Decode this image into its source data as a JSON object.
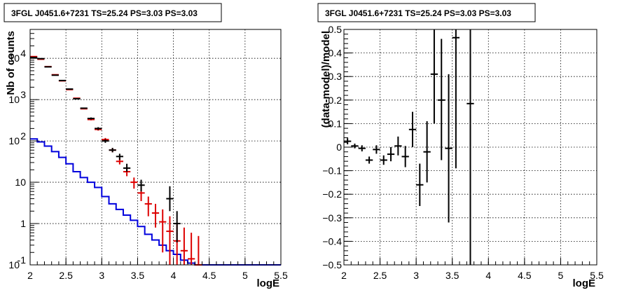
{
  "chart_data": [
    {
      "type": "scatter",
      "title": "3FGL J0451.6+7231 TS=25.24 PS=3.03 PS=3.03",
      "xlabel": "logE",
      "ylabel": "Nb of counts",
      "xlim": [
        2,
        5.5
      ],
      "ylim": [
        0.1,
        50000
      ],
      "yscale": "log",
      "grid": true,
      "x_ticks": [
        "2",
        "2.5",
        "3",
        "3.5",
        "4",
        "4.5",
        "5",
        "5.5"
      ],
      "y_ticks": [
        {
          "value": 0.1,
          "base": "10",
          "exp": "-1"
        },
        {
          "value": 1,
          "base": "1",
          "exp": ""
        },
        {
          "value": 10,
          "base": "10",
          "exp": ""
        },
        {
          "value": 100,
          "base": "10",
          "exp": "2"
        },
        {
          "value": 1000,
          "base": "10",
          "exp": "3"
        },
        {
          "value": 10000,
          "base": "10",
          "exp": "4"
        }
      ],
      "colors": {
        "data": "#000000",
        "model": "#dd0000",
        "background": "#0000dd"
      },
      "series": [
        {
          "kind": "data",
          "points": [
            {
              "x": 2.05,
              "y": 10500,
              "lo": 10500,
              "hi": 10500
            },
            {
              "x": 2.15,
              "y": 9800,
              "lo": 9800,
              "hi": 9800
            },
            {
              "x": 2.25,
              "y": 6200,
              "lo": 6200,
              "hi": 6200
            },
            {
              "x": 2.35,
              "y": 3900,
              "lo": 3900,
              "hi": 3900
            },
            {
              "x": 2.45,
              "y": 2900,
              "lo": 2900,
              "hi": 2900
            },
            {
              "x": 2.55,
              "y": 1800,
              "lo": 1800,
              "hi": 1800
            },
            {
              "x": 2.65,
              "y": 1050,
              "lo": 1050,
              "hi": 1050
            },
            {
              "x": 2.75,
              "y": 620,
              "lo": 620,
              "hi": 620
            },
            {
              "x": 2.85,
              "y": 350,
              "lo": 330,
              "hi": 370
            },
            {
              "x": 2.95,
              "y": 200,
              "lo": 185,
              "hi": 215
            },
            {
              "x": 3.05,
              "y": 100,
              "lo": 90,
              "hi": 110
            },
            {
              "x": 3.15,
              "y": 60,
              "lo": 53,
              "hi": 68
            },
            {
              "x": 3.25,
              "y": 42,
              "lo": 35,
              "hi": 49
            },
            {
              "x": 3.35,
              "y": 22,
              "lo": 18,
              "hi": 28
            },
            {
              "x": 3.55,
              "y": 8.5,
              "lo": 6,
              "hi": 11.5
            },
            {
              "x": 3.95,
              "y": 4,
              "lo": 2,
              "hi": 8
            },
            {
              "x": 4.05,
              "y": 1,
              "lo": 0.35,
              "hi": 2
            }
          ]
        },
        {
          "kind": "model",
          "points": [
            {
              "x": 2.05,
              "y": 11000,
              "lo": 11000,
              "hi": 11000
            },
            {
              "x": 2.15,
              "y": 9500,
              "lo": 9500,
              "hi": 9500
            },
            {
              "x": 2.25,
              "y": 6300,
              "lo": 6300,
              "hi": 6300
            },
            {
              "x": 2.35,
              "y": 4000,
              "lo": 4000,
              "hi": 4000
            },
            {
              "x": 2.45,
              "y": 2850,
              "lo": 2850,
              "hi": 2850
            },
            {
              "x": 2.55,
              "y": 1750,
              "lo": 1750,
              "hi": 1750
            },
            {
              "x": 2.65,
              "y": 1080,
              "lo": 1080,
              "hi": 1080
            },
            {
              "x": 2.75,
              "y": 600,
              "lo": 600,
              "hi": 600
            },
            {
              "x": 2.85,
              "y": 330,
              "lo": 315,
              "hi": 345
            },
            {
              "x": 2.95,
              "y": 190,
              "lo": 178,
              "hi": 202
            },
            {
              "x": 3.05,
              "y": 108,
              "lo": 98,
              "hi": 118
            },
            {
              "x": 3.15,
              "y": 60,
              "lo": 53,
              "hi": 68
            },
            {
              "x": 3.25,
              "y": 32,
              "lo": 27,
              "hi": 38
            },
            {
              "x": 3.35,
              "y": 18,
              "lo": 14,
              "hi": 22
            },
            {
              "x": 3.45,
              "y": 10,
              "lo": 7,
              "hi": 13
            },
            {
              "x": 3.55,
              "y": 5.5,
              "lo": 3.5,
              "hi": 7.5
            },
            {
              "x": 3.65,
              "y": 3,
              "lo": 1.5,
              "hi": 4.5
            },
            {
              "x": 3.75,
              "y": 1.8,
              "lo": 0.8,
              "hi": 3
            },
            {
              "x": 3.85,
              "y": 1.1,
              "lo": 0.2,
              "hi": 2.2
            },
            {
              "x": 3.95,
              "y": 0.65,
              "lo": 0.1,
              "hi": 1.5
            },
            {
              "x": 4.05,
              "y": 0.38,
              "lo": 0.1,
              "hi": 1
            },
            {
              "x": 4.15,
              "y": 0.22,
              "lo": 0.1,
              "hi": 0.8
            },
            {
              "x": 4.25,
              "y": 0.14,
              "lo": 0.1,
              "hi": 0.6
            },
            {
              "x": 4.35,
              "y": 0.1,
              "lo": 0.1,
              "hi": 0.5
            }
          ]
        },
        {
          "kind": "background",
          "edges": [
            2.0,
            2.1,
            2.2,
            2.3,
            2.4,
            2.5,
            2.6,
            2.7,
            2.8,
            2.9,
            3.0,
            3.1,
            3.2,
            3.3,
            3.4,
            3.5,
            3.6,
            3.7,
            3.8,
            3.9,
            4.0,
            4.1,
            4.2,
            4.3,
            4.4,
            5.5
          ],
          "values": [
            112,
            95,
            75,
            55,
            40,
            28,
            18,
            13,
            10,
            7.5,
            4.5,
            3,
            2.2,
            1.6,
            1.2,
            0.85,
            0.55,
            0.4,
            0.3,
            0.22,
            0.18,
            0.13,
            0.11,
            0.1,
            0.1
          ]
        }
      ]
    },
    {
      "type": "scatter",
      "title": "3FGL J0451.6+7231 TS=25.24 PS=3.03 PS=3.03",
      "xlabel": "logE",
      "ylabel": "(data-model)/model",
      "xlim": [
        2,
        5.5
      ],
      "ylim": [
        -0.5,
        0.5
      ],
      "grid": true,
      "x_ticks": [
        "2",
        "2.5",
        "3",
        "3.5",
        "4",
        "4.5",
        "5",
        "5.5"
      ],
      "y_ticks": [
        {
          "value": -0.5,
          "label": "−0.5"
        },
        {
          "value": -0.4,
          "label": "−0.4"
        },
        {
          "value": -0.3,
          "label": "−0.3"
        },
        {
          "value": -0.2,
          "label": "−0.2"
        },
        {
          "value": -0.1,
          "label": "−0.1"
        },
        {
          "value": 0,
          "label": "0"
        },
        {
          "value": 0.1,
          "label": "0.1"
        },
        {
          "value": 0.2,
          "label": "0.2"
        },
        {
          "value": 0.3,
          "label": "0.3"
        },
        {
          "value": 0.4,
          "label": "0.4"
        },
        {
          "value": 0.5,
          "label": "0.5"
        }
      ],
      "colors": {
        "data": "#000000"
      },
      "points": [
        {
          "x": 2.05,
          "y": 0.025,
          "lo": 0.012,
          "hi": 0.038
        },
        {
          "x": 2.15,
          "y": 0.005,
          "lo": -0.005,
          "hi": 0.015
        },
        {
          "x": 2.25,
          "y": -0.005,
          "lo": -0.018,
          "hi": 0.008
        },
        {
          "x": 2.35,
          "y": -0.055,
          "lo": -0.07,
          "hi": -0.04
        },
        {
          "x": 2.45,
          "y": -0.01,
          "lo": -0.028,
          "hi": 0.008
        },
        {
          "x": 2.55,
          "y": -0.055,
          "lo": -0.075,
          "hi": -0.035
        },
        {
          "x": 2.65,
          "y": -0.03,
          "lo": -0.06,
          "hi": 0.0
        },
        {
          "x": 2.75,
          "y": 0.005,
          "lo": -0.035,
          "hi": 0.045
        },
        {
          "x": 2.85,
          "y": -0.04,
          "lo": -0.085,
          "hi": 0.005
        },
        {
          "x": 2.95,
          "y": 0.075,
          "lo": 0.0,
          "hi": 0.15
        },
        {
          "x": 3.05,
          "y": -0.16,
          "lo": -0.25,
          "hi": -0.07
        },
        {
          "x": 3.15,
          "y": -0.02,
          "lo": -0.15,
          "hi": 0.11
        },
        {
          "x": 3.25,
          "y": 0.31,
          "lo": 0.1,
          "hi": 0.5
        },
        {
          "x": 3.35,
          "y": 0.2,
          "lo": -0.055,
          "hi": 0.46
        },
        {
          "x": 3.45,
          "y": -0.005,
          "lo": -0.32,
          "hi": 0.31
        },
        {
          "x": 3.55,
          "y": 0.465,
          "lo": -0.09,
          "hi": 0.5
        },
        {
          "x": 3.75,
          "y": 0.185,
          "lo": -0.5,
          "hi": 0.5
        }
      ]
    }
  ]
}
